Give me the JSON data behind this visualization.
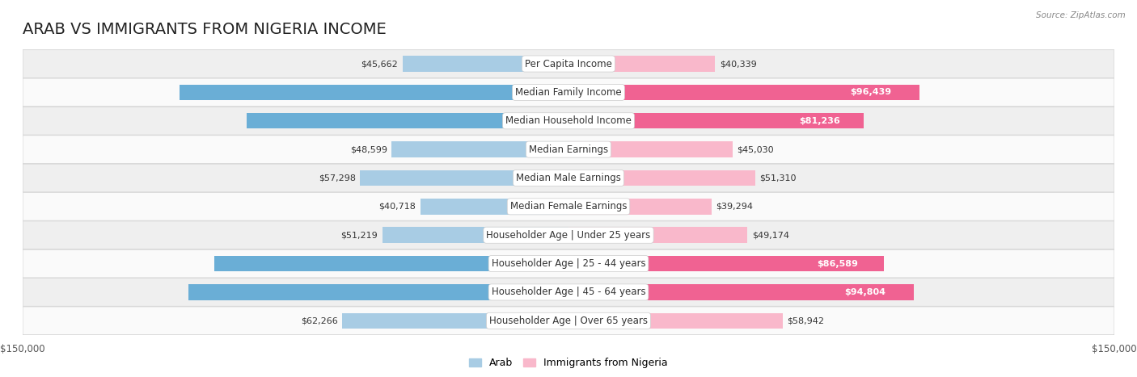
{
  "title": "ARAB VS IMMIGRANTS FROM NIGERIA INCOME",
  "source": "Source: ZipAtlas.com",
  "categories": [
    "Per Capita Income",
    "Median Family Income",
    "Median Household Income",
    "Median Earnings",
    "Median Male Earnings",
    "Median Female Earnings",
    "Householder Age | Under 25 years",
    "Householder Age | 25 - 44 years",
    "Householder Age | 45 - 64 years",
    "Householder Age | Over 65 years"
  ],
  "arab_values": [
    45662,
    106952,
    88398,
    48599,
    57298,
    40718,
    51219,
    97336,
    104566,
    62266
  ],
  "nigeria_values": [
    40339,
    96439,
    81236,
    45030,
    51310,
    39294,
    49174,
    86589,
    94804,
    58942
  ],
  "arab_color_light": "#a8cce4",
  "arab_color_dark": "#6aaed6",
  "nigeria_color_light": "#f9b8cb",
  "nigeria_color_dark": "#f06292",
  "max_value": 150000,
  "arab_label": "Arab",
  "nigeria_label": "Immigrants from Nigeria",
  "bar_height": 0.55,
  "row_bg_color": "#efefef",
  "row_alt_color": "#fafafa",
  "title_fontsize": 14,
  "label_fontsize": 8.5,
  "value_fontsize": 8,
  "legend_fontsize": 9,
  "arab_dark_threshold": 70000,
  "nigeria_dark_threshold": 70000
}
